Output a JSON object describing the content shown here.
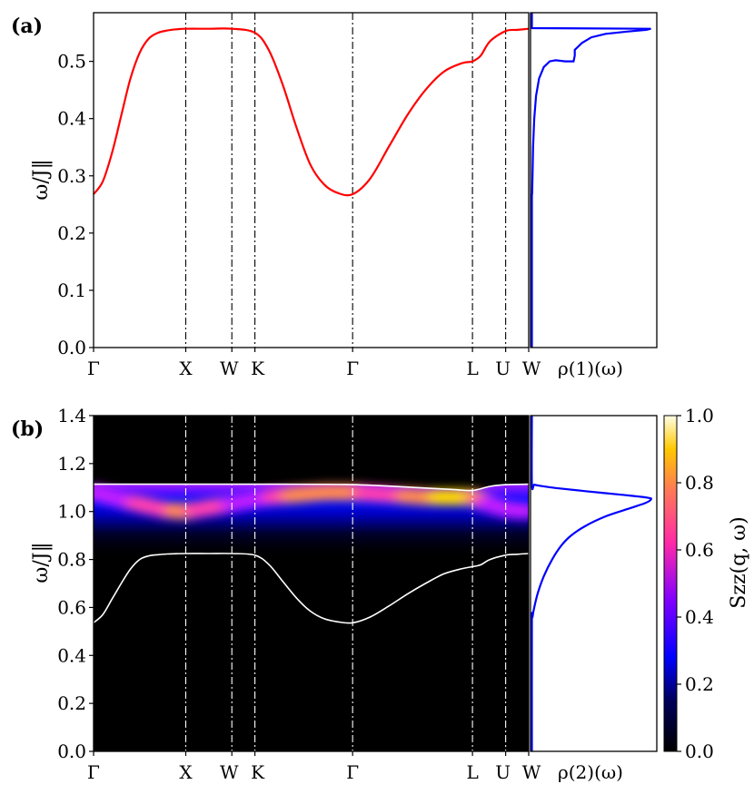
{
  "chart_data": [
    {
      "id": "a",
      "type": "line",
      "panel_label": "(a)",
      "ylabel": "ω/J‖",
      "ylim": [
        0,
        0.585
      ],
      "yticks": [
        "0.0",
        "0.1",
        "0.2",
        "0.3",
        "0.4",
        "0.5"
      ],
      "x_path_labels": [
        "Γ",
        "X",
        "W",
        "K",
        "Γ",
        "L",
        "U",
        "W"
      ],
      "x_path_positions": [
        0,
        1,
        1.5,
        1.75,
        2.81,
        4.11,
        4.47,
        4.72
      ],
      "xlim": [
        0,
        4.72
      ],
      "series": [
        {
          "color": "#ff0000",
          "x": [
            0,
            0.1,
            0.2,
            0.3,
            0.4,
            0.5,
            0.6,
            0.7,
            0.8,
            0.9,
            1.0,
            1.25,
            1.5,
            1.75,
            1.9,
            2.05,
            2.2,
            2.35,
            2.5,
            2.65,
            2.81,
            3.0,
            3.2,
            3.4,
            3.6,
            3.8,
            4.0,
            4.11,
            4.2,
            4.3,
            4.47,
            4.6,
            4.72
          ],
          "y": [
            0.268,
            0.29,
            0.34,
            0.405,
            0.47,
            0.515,
            0.54,
            0.55,
            0.554,
            0.556,
            0.557,
            0.557,
            0.557,
            0.55,
            0.52,
            0.46,
            0.385,
            0.32,
            0.285,
            0.27,
            0.268,
            0.295,
            0.35,
            0.405,
            0.45,
            0.482,
            0.497,
            0.5,
            0.51,
            0.535,
            0.553,
            0.555,
            0.557
          ]
        }
      ]
    },
    {
      "id": "a-dos",
      "type": "line",
      "xlabel": "ρ(1)(ω)",
      "ylim": [
        0,
        0.585
      ],
      "series": [
        {
          "color": "#0000ff",
          "rho": [
            0,
            0,
            0.002,
            0.005,
            0.01,
            0.02,
            0.035,
            0.06,
            0.1,
            0.15,
            0.2,
            0.28,
            0.35,
            0.36,
            0.36,
            0.42,
            0.5,
            0.62,
            0.8,
            0.96,
            1.0,
            0.0,
            0.0,
            0.0
          ],
          "w": [
            0,
            0.265,
            0.27,
            0.3,
            0.35,
            0.4,
            0.44,
            0.47,
            0.49,
            0.5,
            0.502,
            0.5,
            0.5,
            0.51,
            0.52,
            0.532,
            0.542,
            0.548,
            0.552,
            0.555,
            0.557,
            0.558,
            0.57,
            0.585
          ]
        }
      ]
    },
    {
      "id": "b",
      "type": "heatmap",
      "panel_label": "(b)",
      "ylabel": "ω/J‖",
      "ylim": [
        0,
        1.4
      ],
      "yticks": [
        "0.0",
        "0.2",
        "0.4",
        "0.6",
        "0.8",
        "1.0",
        "1.2",
        "1.4"
      ],
      "x_path_labels": [
        "Γ",
        "X",
        "W",
        "K",
        "Γ",
        "L",
        "U",
        "W"
      ],
      "x_path_positions": [
        0,
        1,
        1.5,
        1.75,
        2.81,
        4.11,
        4.47,
        4.72
      ],
      "xlim": [
        0,
        4.72
      ],
      "colorbar": {
        "label": "Szz(q, ω)",
        "ticks": [
          "0.0",
          "0.2",
          "0.4",
          "0.6",
          "0.8",
          "1.0"
        ],
        "range": [
          0,
          1
        ]
      },
      "lower_edge": {
        "x": [
          0,
          0.1,
          0.2,
          0.3,
          0.4,
          0.5,
          0.6,
          0.7,
          0.8,
          0.9,
          1.0,
          1.25,
          1.5,
          1.75,
          1.9,
          2.05,
          2.2,
          2.35,
          2.5,
          2.65,
          2.81,
          3.0,
          3.2,
          3.4,
          3.6,
          3.8,
          4.0,
          4.11,
          4.2,
          4.3,
          4.47,
          4.6,
          4.72
        ],
        "y": [
          0.536,
          0.57,
          0.635,
          0.7,
          0.76,
          0.8,
          0.815,
          0.82,
          0.823,
          0.824,
          0.825,
          0.825,
          0.825,
          0.818,
          0.78,
          0.71,
          0.64,
          0.585,
          0.553,
          0.54,
          0.536,
          0.56,
          0.605,
          0.655,
          0.7,
          0.74,
          0.762,
          0.77,
          0.778,
          0.8,
          0.818,
          0.822,
          0.825
        ]
      },
      "upper_edge": {
        "x": [
          0,
          1.0,
          2.0,
          2.81,
          3.5,
          3.9,
          4.11,
          4.3,
          4.47,
          4.72
        ],
        "y": [
          1.114,
          1.114,
          1.114,
          1.112,
          1.1,
          1.092,
          1.088,
          1.105,
          1.112,
          1.114
        ]
      },
      "intensity_ridge": {
        "x": [
          0,
          0.4,
          0.8,
          1.0,
          1.3,
          1.6,
          1.9,
          2.2,
          2.5,
          2.81,
          3.2,
          3.6,
          3.9,
          4.11,
          4.3,
          4.47,
          4.72
        ],
        "y": [
          1.08,
          1.04,
          1.005,
          1.0,
          1.02,
          1.04,
          1.06,
          1.07,
          1.08,
          1.08,
          1.07,
          1.06,
          1.06,
          1.06,
          1.03,
          1.01,
          1.0
        ],
        "peak": [
          0.55,
          0.6,
          0.7,
          0.75,
          0.65,
          0.55,
          0.6,
          0.75,
          0.85,
          0.75,
          0.65,
          0.8,
          0.95,
          0.9,
          0.6,
          0.5,
          0.5
        ]
      }
    },
    {
      "id": "b-dos",
      "type": "line",
      "xlabel": "ρ(2)(ω)",
      "ylim": [
        0,
        1.4
      ],
      "series": [
        {
          "color": "#0000ff",
          "rho": [
            0,
            0,
            0.005,
            0.02,
            0.05,
            0.1,
            0.17,
            0.25,
            0.33,
            0.45,
            0.62,
            0.8,
            0.95,
            1.0,
            0.97,
            0.75,
            0.45,
            0.2,
            0.06,
            0.02,
            0.0,
            0.0
          ],
          "w": [
            0,
            0.53,
            0.56,
            0.6,
            0.66,
            0.73,
            0.8,
            0.86,
            0.9,
            0.94,
            0.98,
            1.01,
            1.035,
            1.05,
            1.058,
            1.07,
            1.085,
            1.098,
            1.108,
            1.112,
            1.115,
            1.4
          ]
        }
      ]
    }
  ]
}
